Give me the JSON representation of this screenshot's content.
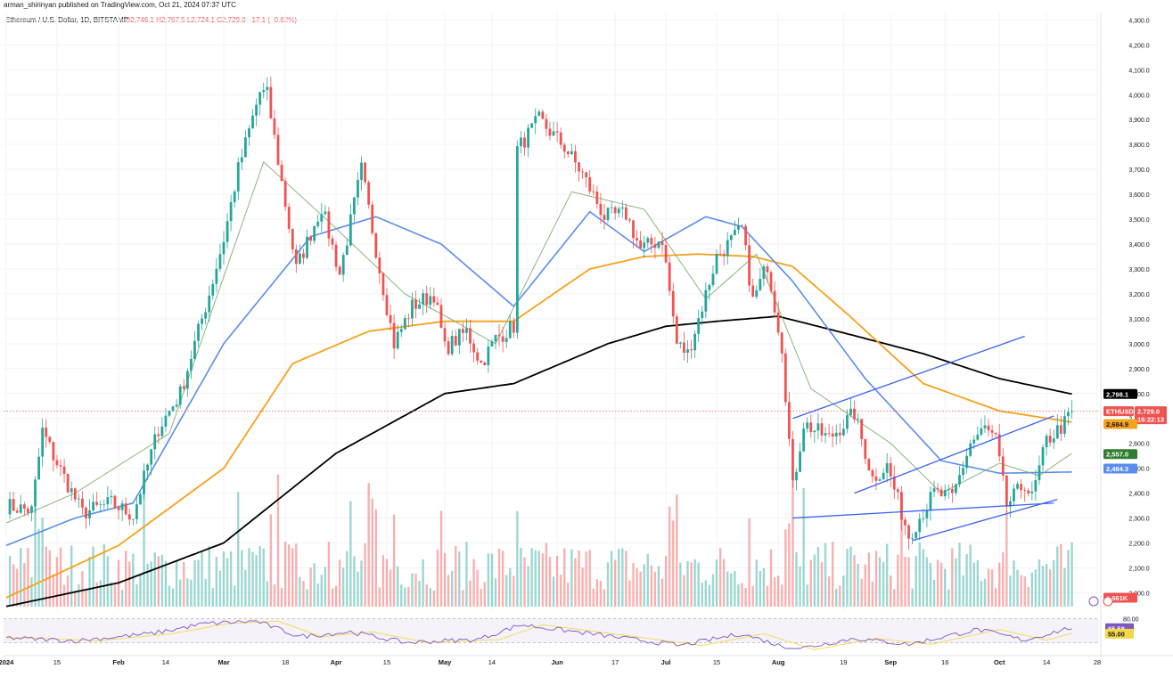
{
  "header": {
    "published": "arman_shirinyan published on TradingView.com, Oct 21, 2024 07:37 UTC",
    "symbol": "Ethereum / U.S. Dollar, 1D, BITSTAMP",
    "ohlc": "O2,746.1  H2,767.5  L2,724.1  C2,729.0  −17.1 (−0.62%)"
  },
  "colors": {
    "up": "#26a69a",
    "down": "#ef5350",
    "ma200": "#000000",
    "ma100": "#f7a21b",
    "ma50": "#5b8def",
    "ma20": "#7fb069",
    "channel": "#3a62f2",
    "rsi": "#7e57c2",
    "rsi_signal": "#f5d84a"
  },
  "chart_data": {
    "type": "candlestick",
    "price_ylim": [
      1930,
      4330
    ],
    "price_ticks": [
      "4,300.0",
      "4,200.0",
      "4,100.0",
      "4,000.0",
      "3,900.0",
      "3,800.0",
      "3,700.0",
      "3,600.0",
      "3,500.0",
      "3,400.0",
      "3,300.0",
      "3,200.0",
      "3,100.0",
      "3,000.0",
      "2,900.0",
      "2,800.0",
      "2,700.0",
      "2,600.0",
      "2,500.0",
      "2,400.0",
      "2,300.0",
      "2,200.0",
      "2,100.0",
      "2,000.0"
    ],
    "x_ticks": [
      "2024",
      "15",
      "Feb",
      "14",
      "Mar",
      "18",
      "Apr",
      "15",
      "May",
      "14",
      "Jun",
      "17",
      "Jul",
      "15",
      "Aug",
      "19",
      "Sep",
      "16",
      "Oct",
      "14",
      "28"
    ],
    "x_tick_dates": [
      "2024-01-01",
      "2024-01-15",
      "2024-02-01",
      "2024-02-14",
      "2024-03-01",
      "2024-03-18",
      "2024-04-01",
      "2024-04-15",
      "2024-05-01",
      "2024-05-14",
      "2024-06-01",
      "2024-06-17",
      "2024-07-01",
      "2024-07-15",
      "2024-08-01",
      "2024-08-19",
      "2024-09-01",
      "2024-09-16",
      "2024-10-01",
      "2024-10-14",
      "2024-10-28"
    ],
    "series_keypoints": [
      [
        "2024-01-01",
        2350
      ],
      [
        "2024-01-08",
        2330
      ],
      [
        "2024-01-11",
        2650
      ],
      [
        "2024-01-14",
        2550
      ],
      [
        "2024-01-22",
        2320
      ],
      [
        "2024-01-30",
        2360
      ],
      [
        "2024-02-05",
        2310
      ],
      [
        "2024-02-12",
        2660
      ],
      [
        "2024-02-18",
        2800
      ],
      [
        "2024-02-26",
        3200
      ],
      [
        "2024-03-01",
        3420
      ],
      [
        "2024-03-05",
        3700
      ],
      [
        "2024-03-11",
        4010
      ],
      [
        "2024-03-13",
        4000
      ],
      [
        "2024-03-18",
        3560
      ],
      [
        "2024-03-21",
        3300
      ],
      [
        "2024-03-28",
        3550
      ],
      [
        "2024-04-02",
        3280
      ],
      [
        "2024-04-08",
        3700
      ],
      [
        "2024-04-13",
        3300
      ],
      [
        "2024-04-17",
        3000
      ],
      [
        "2024-04-22",
        3150
      ],
      [
        "2024-04-28",
        3200
      ],
      [
        "2024-05-01",
        2980
      ],
      [
        "2024-05-07",
        3050
      ],
      [
        "2024-05-11",
        2920
      ],
      [
        "2024-05-15",
        3020
      ],
      [
        "2024-05-20",
        3070
      ],
      [
        "2024-05-21",
        3780
      ],
      [
        "2024-05-27",
        3900
      ],
      [
        "2024-06-03",
        3790
      ],
      [
        "2024-06-08",
        3680
      ],
      [
        "2024-06-14",
        3510
      ],
      [
        "2024-06-20",
        3520
      ],
      [
        "2024-06-24",
        3380
      ],
      [
        "2024-06-30",
        3420
      ],
      [
        "2024-07-04",
        3000
      ],
      [
        "2024-07-07",
        2960
      ],
      [
        "2024-07-10",
        3100
      ],
      [
        "2024-07-15",
        3350
      ],
      [
        "2024-07-22",
        3460
      ],
      [
        "2024-07-25",
        3170
      ],
      [
        "2024-07-29",
        3320
      ],
      [
        "2024-08-02",
        2990
      ],
      [
        "2024-08-05",
        2420
      ],
      [
        "2024-08-08",
        2680
      ],
      [
        "2024-08-15",
        2620
      ],
      [
        "2024-08-22",
        2720
      ],
      [
        "2024-08-27",
        2460
      ],
      [
        "2024-08-31",
        2510
      ],
      [
        "2024-09-06",
        2230
      ],
      [
        "2024-09-13",
        2400
      ],
      [
        "2024-09-18",
        2380
      ],
      [
        "2024-09-23",
        2600
      ],
      [
        "2024-09-27",
        2660
      ],
      [
        "2024-09-30",
        2610
      ],
      [
        "2024-10-03",
        2350
      ],
      [
        "2024-10-08",
        2440
      ],
      [
        "2024-10-10",
        2380
      ],
      [
        "2024-10-14",
        2610
      ],
      [
        "2024-10-19",
        2680
      ],
      [
        "2024-10-21",
        2729
      ]
    ],
    "ma_keypoints": {
      "ma200": [
        [
          "2024-01-01",
          1945
        ],
        [
          "2024-02-01",
          2040
        ],
        [
          "2024-03-01",
          2200
        ],
        [
          "2024-04-01",
          2560
        ],
        [
          "2024-05-01",
          2800
        ],
        [
          "2024-05-20",
          2840
        ],
        [
          "2024-06-15",
          3000
        ],
        [
          "2024-07-01",
          3070
        ],
        [
          "2024-07-15",
          3090
        ],
        [
          "2024-08-01",
          3110
        ],
        [
          "2024-08-20",
          3040
        ],
        [
          "2024-09-10",
          2960
        ],
        [
          "2024-10-01",
          2860
        ],
        [
          "2024-10-21",
          2798
        ]
      ],
      "ma100": [
        [
          "2024-01-01",
          1980
        ],
        [
          "2024-02-01",
          2190
        ],
        [
          "2024-03-01",
          2500
        ],
        [
          "2024-03-20",
          2920
        ],
        [
          "2024-04-10",
          3050
        ],
        [
          "2024-05-01",
          3090
        ],
        [
          "2024-05-20",
          3090
        ],
        [
          "2024-06-10",
          3300
        ],
        [
          "2024-06-25",
          3350
        ],
        [
          "2024-07-10",
          3360
        ],
        [
          "2024-07-25",
          3350
        ],
        [
          "2024-08-05",
          3310
        ],
        [
          "2024-08-20",
          3120
        ],
        [
          "2024-09-10",
          2840
        ],
        [
          "2024-10-01",
          2730
        ],
        [
          "2024-10-21",
          2685
        ]
      ],
      "ma50": [
        [
          "2024-01-01",
          2190
        ],
        [
          "2024-01-20",
          2300
        ],
        [
          "2024-02-05",
          2360
        ],
        [
          "2024-03-01",
          3000
        ],
        [
          "2024-03-25",
          3430
        ],
        [
          "2024-04-12",
          3510
        ],
        [
          "2024-04-30",
          3400
        ],
        [
          "2024-05-20",
          3150
        ],
        [
          "2024-06-10",
          3530
        ],
        [
          "2024-06-25",
          3370
        ],
        [
          "2024-07-12",
          3510
        ],
        [
          "2024-07-22",
          3470
        ],
        [
          "2024-08-05",
          3250
        ],
        [
          "2024-08-25",
          2860
        ],
        [
          "2024-09-15",
          2530
        ],
        [
          "2024-10-01",
          2480
        ],
        [
          "2024-10-21",
          2485
        ]
      ],
      "ma20": [
        [
          "2024-01-01",
          2280
        ],
        [
          "2024-01-20",
          2400
        ],
        [
          "2024-02-15",
          2640
        ],
        [
          "2024-03-12",
          3730
        ],
        [
          "2024-03-30",
          3490
        ],
        [
          "2024-04-20",
          3200
        ],
        [
          "2024-05-15",
          3000
        ],
        [
          "2024-06-05",
          3610
        ],
        [
          "2024-06-25",
          3540
        ],
        [
          "2024-07-12",
          3180
        ],
        [
          "2024-07-26",
          3360
        ],
        [
          "2024-08-10",
          2820
        ],
        [
          "2024-09-01",
          2600
        ],
        [
          "2024-09-15",
          2400
        ],
        [
          "2024-10-01",
          2520
        ],
        [
          "2024-10-12",
          2470
        ],
        [
          "2024-10-21",
          2560
        ]
      ]
    },
    "channels": [
      {
        "from": [
          "2024-08-05",
          2300
        ],
        "to": [
          "2024-10-16",
          2360
        ]
      },
      {
        "from": [
          "2024-08-05",
          2700
        ],
        "to": [
          "2024-10-08",
          3030
        ]
      },
      {
        "from": [
          "2024-09-07",
          2210
        ],
        "to": [
          "2024-10-17",
          2375
        ]
      },
      {
        "from": [
          "2024-08-22",
          2400
        ],
        "to": [
          "2024-10-16",
          2710
        ]
      }
    ],
    "labels": {
      "ma200": "2,798.1",
      "symbol_tag": "ETHUSD",
      "price": "2,729.0",
      "countdown": "16:22:13",
      "ma100": "2,684.9",
      "ma20": "2,557.0",
      "ma50": "2,484.3",
      "volume": "1.661K"
    },
    "last_price": 2729.0,
    "rsi": {
      "ylim": [
        30,
        90
      ],
      "ticks": [
        "80.00",
        "55.00"
      ],
      "value": "65.58",
      "value_num": 65.58,
      "band": [
        40,
        80
      ],
      "keypoints": [
        [
          "2024-01-01",
          48
        ],
        [
          "2024-01-20",
          43
        ],
        [
          "2024-02-10",
          55
        ],
        [
          "2024-02-25",
          72
        ],
        [
          "2024-03-10",
          76
        ],
        [
          "2024-03-22",
          50
        ],
        [
          "2024-04-05",
          58
        ],
        [
          "2024-04-20",
          40
        ],
        [
          "2024-05-10",
          45
        ],
        [
          "2024-05-22",
          70
        ],
        [
          "2024-06-10",
          55
        ],
        [
          "2024-07-05",
          35
        ],
        [
          "2024-07-22",
          55
        ],
        [
          "2024-08-05",
          28
        ],
        [
          "2024-08-22",
          47
        ],
        [
          "2024-09-06",
          37
        ],
        [
          "2024-09-25",
          62
        ],
        [
          "2024-10-08",
          44
        ],
        [
          "2024-10-21",
          65.58
        ]
      ]
    }
  }
}
